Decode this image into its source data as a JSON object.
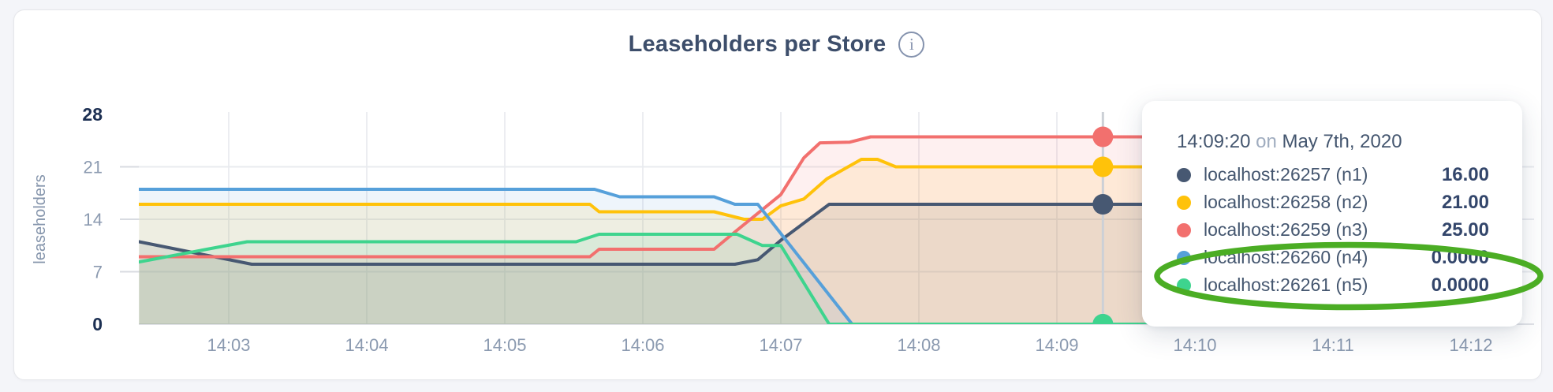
{
  "panel": {
    "title": "Leaseholders per Store",
    "info_icon_glyph": "i"
  },
  "tooltip": {
    "time": "14:09:20",
    "conjunction": "on",
    "date": "May 7th, 2020",
    "rows": [
      {
        "label": "localhost:26257 (n1)",
        "value": "16.00",
        "color": "#475872"
      },
      {
        "label": "localhost:26258 (n2)",
        "value": "21.00",
        "color": "#FFC20A"
      },
      {
        "label": "localhost:26259 (n3)",
        "value": "25.00",
        "color": "#F2706E"
      },
      {
        "label": "localhost:26260 (n4)",
        "value": "0.0000",
        "color": "#56A0DA"
      },
      {
        "label": "localhost:26261 (n5)",
        "value": "0.0000",
        "color": "#3ED48E"
      }
    ]
  },
  "annotation": {
    "type": "ellipse",
    "color": "#4BAD24",
    "rows_highlighted": [
      "localhost:26260 (n4)",
      "localhost:26261 (n5)"
    ]
  },
  "chart_data": {
    "type": "area",
    "title": "Leaseholders per Store",
    "ylabel": "leaseholders",
    "xlabel": "",
    "grid": true,
    "ylim": [
      0,
      28
    ],
    "yticks": [
      0,
      7,
      14,
      21,
      28
    ],
    "ybold": [
      0,
      28
    ],
    "x_unit": "seconds since 14:00:00 on May 7th, 2020",
    "xticks": [
      {
        "label": "14:03",
        "t": 180
      },
      {
        "label": "14:04",
        "t": 240
      },
      {
        "label": "14:05",
        "t": 300
      },
      {
        "label": "14:06",
        "t": 360
      },
      {
        "label": "14:07",
        "t": 420
      },
      {
        "label": "14:08",
        "t": 480
      },
      {
        "label": "14:09",
        "t": 540
      },
      {
        "label": "14:10",
        "t": 600
      },
      {
        "label": "14:11",
        "t": 660
      },
      {
        "label": "14:12",
        "t": 720
      }
    ],
    "series": [
      {
        "name": "localhost:26257 (n1)",
        "node": "n1",
        "color": "#475872",
        "fill_opacity": 0.12,
        "points": [
          [
            141,
            11
          ],
          [
            190,
            8
          ],
          [
            400,
            8
          ],
          [
            410,
            8.6
          ],
          [
            420,
            11.2
          ],
          [
            430,
            13.5
          ],
          [
            441,
            16
          ],
          [
            606,
            16
          ]
        ]
      },
      {
        "name": "localhost:26258 (n2)",
        "node": "n2",
        "color": "#FFC20A",
        "fill_opacity": 0.11,
        "points": [
          [
            141,
            16
          ],
          [
            337,
            16
          ],
          [
            341,
            15
          ],
          [
            391,
            15
          ],
          [
            404,
            14
          ],
          [
            412,
            14
          ],
          [
            420,
            15.8
          ],
          [
            430,
            16.7
          ],
          [
            440,
            19.4
          ],
          [
            455,
            22
          ],
          [
            462,
            22
          ],
          [
            470,
            21
          ],
          [
            606,
            21
          ]
        ]
      },
      {
        "name": "localhost:26259 (n3)",
        "node": "n3",
        "color": "#F2706E",
        "fill_opacity": 0.1,
        "points": [
          [
            141,
            9
          ],
          [
            337,
            9
          ],
          [
            341,
            10
          ],
          [
            391,
            10
          ],
          [
            400,
            12.3
          ],
          [
            420,
            17.3
          ],
          [
            430,
            22.2
          ],
          [
            437,
            24.2
          ],
          [
            450,
            24.3
          ],
          [
            459,
            25
          ],
          [
            606,
            25
          ]
        ]
      },
      {
        "name": "localhost:26260 (n4)",
        "node": "n4",
        "color": "#56A0DA",
        "fill_opacity": 0.1,
        "points": [
          [
            141,
            18
          ],
          [
            339,
            18
          ],
          [
            350,
            17
          ],
          [
            391,
            17
          ],
          [
            400,
            16
          ],
          [
            410,
            16
          ],
          [
            451,
            0
          ],
          [
            606,
            0
          ]
        ]
      },
      {
        "name": "localhost:26261 (n5)",
        "node": "n5",
        "color": "#3ED48E",
        "fill_opacity": 0.11,
        "points": [
          [
            141,
            8.3
          ],
          [
            188,
            11
          ],
          [
            331,
            11
          ],
          [
            341,
            12
          ],
          [
            401,
            12
          ],
          [
            412,
            10.5
          ],
          [
            420,
            10.5
          ],
          [
            441,
            0
          ],
          [
            606,
            0
          ]
        ]
      }
    ],
    "hover": {
      "t": 560,
      "time": "14:09:20",
      "values": [
        16,
        21,
        25,
        0,
        0
      ]
    }
  }
}
